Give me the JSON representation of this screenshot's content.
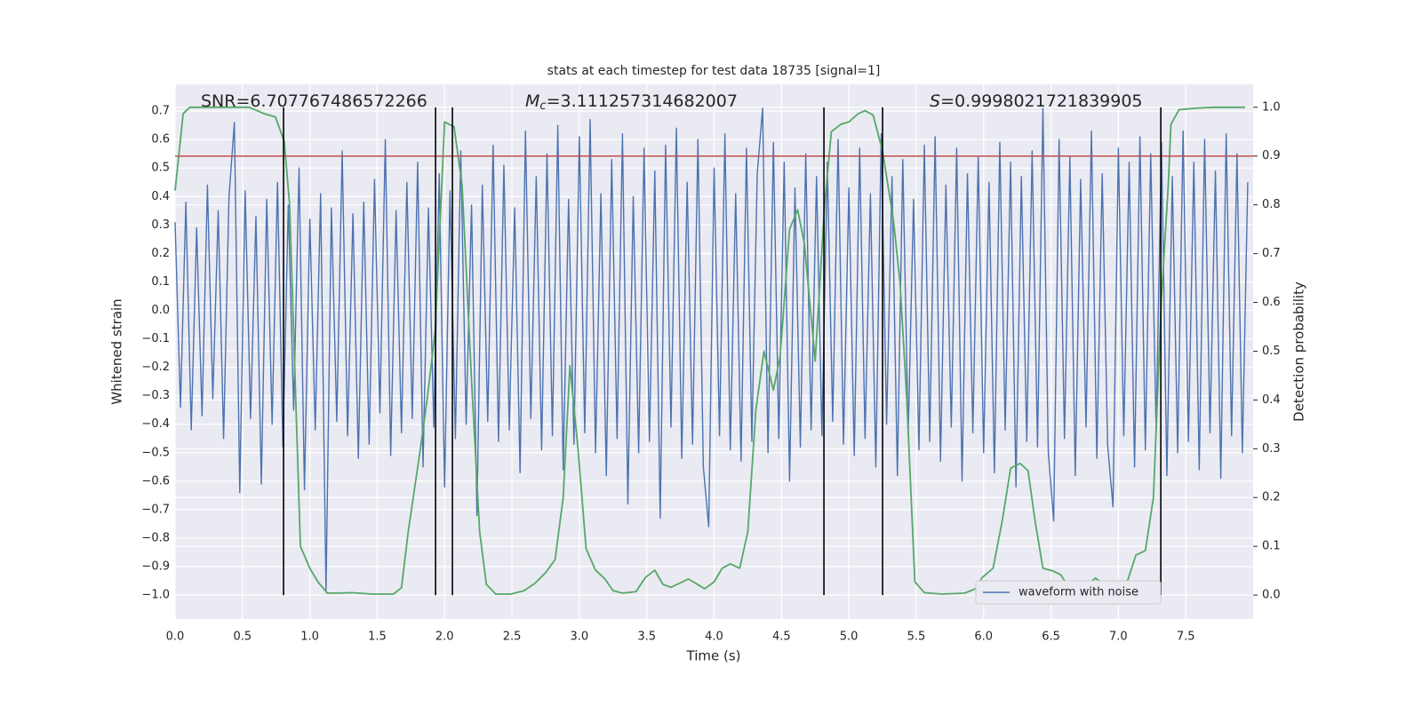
{
  "chart_data": {
    "type": "line",
    "title": "stats at each timestep for test data 18735 [signal=1]",
    "xlabel": "Time (s)",
    "ylabel": "Whitened strain",
    "y2label": "Detection probability",
    "annotations": [
      {
        "text": "SNR=6.707767486572266"
      },
      {
        "symbol": "M",
        "subscript": "c",
        "text": "=3.111257314682007"
      },
      {
        "symbol": "S",
        "text": "=0.9998021721839905"
      }
    ],
    "xlim": [
      0,
      8
    ],
    "ylim": [
      -1.084,
      0.794
    ],
    "y2lim": [
      -0.049,
      1.047
    ],
    "xticks": [
      {
        "value": 0,
        "label": "0.0"
      },
      {
        "value": 0.5,
        "label": "0.5"
      },
      {
        "value": 1,
        "label": "1.0"
      },
      {
        "value": 1.5,
        "label": "1.5"
      },
      {
        "value": 2,
        "label": "2.0"
      },
      {
        "value": 2.5,
        "label": "2.5"
      },
      {
        "value": 3,
        "label": "3.0"
      },
      {
        "value": 3.5,
        "label": "3.5"
      },
      {
        "value": 4,
        "label": "4.0"
      },
      {
        "value": 4.5,
        "label": "4.5"
      },
      {
        "value": 5,
        "label": "5.0"
      },
      {
        "value": 5.5,
        "label": "5.5"
      },
      {
        "value": 6,
        "label": "6.0"
      },
      {
        "value": 6.5,
        "label": "6.5"
      },
      {
        "value": 7,
        "label": "7.0"
      },
      {
        "value": 7.5,
        "label": "7.5"
      }
    ],
    "yticks": [
      {
        "value": 0.7,
        "label": "0.7"
      },
      {
        "value": 0.6,
        "label": "0.6"
      },
      {
        "value": 0.5,
        "label": "0.5"
      },
      {
        "value": 0.4,
        "label": "0.4"
      },
      {
        "value": 0.3,
        "label": "0.3"
      },
      {
        "value": 0.2,
        "label": "0.2"
      },
      {
        "value": 0.1,
        "label": "0.1"
      },
      {
        "value": 0,
        "label": "0.0"
      },
      {
        "value": -0.1,
        "label": "−0.1"
      },
      {
        "value": -0.2,
        "label": "−0.2"
      },
      {
        "value": -0.3,
        "label": "−0.3"
      },
      {
        "value": -0.4,
        "label": "−0.4"
      },
      {
        "value": -0.5,
        "label": "−0.5"
      },
      {
        "value": -0.6,
        "label": "−0.6"
      },
      {
        "value": -0.7,
        "label": "−0.7"
      },
      {
        "value": -0.8,
        "label": "−0.8"
      },
      {
        "value": -0.9,
        "label": "−0.9"
      },
      {
        "value": -1,
        "label": "−1.0"
      }
    ],
    "y2ticks": [
      {
        "value": 0,
        "label": "0.0"
      },
      {
        "value": 0.1,
        "label": "0.1"
      },
      {
        "value": 0.2,
        "label": "0.2"
      },
      {
        "value": 0.3,
        "label": "0.3"
      },
      {
        "value": 0.4,
        "label": "0.4"
      },
      {
        "value": 0.5,
        "label": "0.5"
      },
      {
        "value": 0.6,
        "label": "0.6"
      },
      {
        "value": 0.7,
        "label": "0.7"
      },
      {
        "value": 0.8,
        "label": "0.8"
      },
      {
        "value": 0.9,
        "label": "0.9"
      },
      {
        "value": 1,
        "label": "1.0"
      }
    ],
    "grid": true,
    "legend": "lower right",
    "series": [
      {
        "name": "waveform with noise",
        "color": "#4c72b0",
        "axis": "y",
        "x": [
          0,
          0.04,
          0.08,
          0.12,
          0.16,
          0.2,
          0.24,
          0.28,
          0.32,
          0.36,
          0.4,
          0.44,
          0.48,
          0.52,
          0.56,
          0.6,
          0.64,
          0.68,
          0.72,
          0.76,
          0.8,
          0.84,
          0.88,
          0.92,
          0.96,
          1,
          1.04,
          1.08,
          1.12,
          1.16,
          1.2,
          1.24,
          1.28,
          1.32,
          1.36,
          1.4,
          1.44,
          1.48,
          1.52,
          1.56,
          1.6,
          1.64,
          1.68,
          1.72,
          1.76,
          1.8,
          1.84,
          1.88,
          1.92,
          1.96,
          2,
          2.04,
          2.08,
          2.12,
          2.16,
          2.2,
          2.24,
          2.28,
          2.32,
          2.36,
          2.4,
          2.44,
          2.48,
          2.52,
          2.56,
          2.6,
          2.64,
          2.68,
          2.72,
          2.76,
          2.8,
          2.84,
          2.88,
          2.92,
          2.96,
          3,
          3.04,
          3.08,
          3.12,
          3.16,
          3.2,
          3.24,
          3.28,
          3.32,
          3.36,
          3.4,
          3.44,
          3.48,
          3.52,
          3.56,
          3.6,
          3.64,
          3.68,
          3.72,
          3.76,
          3.8,
          3.84,
          3.88,
          3.92,
          3.96,
          4,
          4.04,
          4.08,
          4.12,
          4.16,
          4.2,
          4.24,
          4.28,
          4.32,
          4.36,
          4.4,
          4.44,
          4.48,
          4.52,
          4.56,
          4.6,
          4.64,
          4.68,
          4.72,
          4.76,
          4.8,
          4.84,
          4.88,
          4.92,
          4.96,
          5,
          5.04,
          5.08,
          5.12,
          5.16,
          5.2,
          5.24,
          5.28,
          5.32,
          5.36,
          5.4,
          5.44,
          5.48,
          5.52,
          5.56,
          5.6,
          5.64,
          5.68,
          5.72,
          5.76,
          5.8,
          5.84,
          5.88,
          5.92,
          5.96,
          6,
          6.04,
          6.08,
          6.12,
          6.16,
          6.2,
          6.24,
          6.28,
          6.32,
          6.36,
          6.4,
          6.44,
          6.48,
          6.52,
          6.56,
          6.6,
          6.64,
          6.68,
          6.72,
          6.76,
          6.8,
          6.84,
          6.88,
          6.92,
          6.96,
          7,
          7.04,
          7.08,
          7.12,
          7.16,
          7.2,
          7.24,
          7.28,
          7.32,
          7.36,
          7.4,
          7.44,
          7.48,
          7.52,
          7.56,
          7.6,
          7.64,
          7.68,
          7.72,
          7.76,
          7.8,
          7.84,
          7.88,
          7.92,
          7.96
        ],
        "values": [
          0.31,
          -0.34,
          0.38,
          -0.42,
          0.29,
          -0.37,
          0.44,
          -0.31,
          0.35,
          -0.45,
          0.4,
          0.66,
          -0.64,
          0.42,
          -0.38,
          0.33,
          -0.61,
          0.39,
          -0.4,
          0.45,
          -0.48,
          0.37,
          -0.35,
          0.5,
          -0.63,
          0.32,
          -0.42,
          0.41,
          -0.99,
          0.36,
          -0.39,
          0.56,
          -0.44,
          0.34,
          -0.52,
          0.38,
          -0.47,
          0.46,
          -0.36,
          0.6,
          -0.51,
          0.35,
          -0.43,
          0.45,
          -0.38,
          0.52,
          -0.55,
          0.36,
          -0.41,
          0.48,
          -0.62,
          0.42,
          -0.45,
          0.56,
          -0.4,
          0.37,
          -0.72,
          0.44,
          -0.39,
          0.58,
          -0.46,
          0.51,
          -0.42,
          0.36,
          -0.57,
          0.63,
          -0.38,
          0.47,
          -0.49,
          0.55,
          -0.44,
          0.65,
          -0.56,
          0.39,
          -0.47,
          0.61,
          -0.43,
          0.67,
          -0.5,
          0.41,
          -0.58,
          0.53,
          -0.45,
          0.62,
          -0.68,
          0.4,
          -0.5,
          0.57,
          -0.46,
          0.49,
          -0.73,
          0.58,
          -0.41,
          0.64,
          -0.52,
          0.45,
          -0.47,
          0.6,
          -0.55,
          -0.76,
          0.5,
          -0.44,
          0.62,
          -0.49,
          0.41,
          -0.53,
          0.57,
          -0.46,
          0.48,
          0.71,
          -0.5,
          0.59,
          -0.45,
          0.52,
          -0.6,
          0.43,
          -0.48,
          0.55,
          -0.42,
          0.47,
          -0.44,
          0.52,
          -0.39,
          0.6,
          -0.47,
          0.43,
          -0.51,
          0.57,
          -0.45,
          0.41,
          -0.55,
          0.62,
          -0.4,
          0.47,
          -0.58,
          0.53,
          -0.44,
          0.39,
          -0.49,
          0.58,
          -0.46,
          0.61,
          -0.53,
          0.44,
          -0.41,
          0.57,
          -0.6,
          0.48,
          -0.43,
          0.54,
          -0.5,
          0.45,
          -0.57,
          0.59,
          -0.42,
          0.52,
          -0.62,
          0.47,
          -0.46,
          0.56,
          -0.48,
          0.71,
          -0.5,
          -0.74,
          0.6,
          -0.45,
          0.54,
          -0.58,
          0.46,
          -0.41,
          0.63,
          -0.52,
          0.48,
          -0.47,
          -0.69,
          0.57,
          -0.44,
          0.52,
          -0.55,
          0.61,
          -0.49,
          0.55,
          -0.42,
          0.59,
          -0.58,
          0.47,
          -0.5,
          0.63,
          -0.46,
          0.52,
          -0.56,
          0.6,
          -0.43,
          0.49,
          -0.59,
          0.62,
          -0.44,
          0.55,
          -0.5,
          0.45
        ]
      },
      {
        "color": "#55a868",
        "axis": "y2",
        "x": [
          0,
          0.06,
          0.11,
          0.55,
          0.66,
          0.745,
          0.81,
          0.85,
          0.93,
          1,
          1.06,
          1.13,
          1.21,
          1.31,
          1.47,
          1.62,
          1.68,
          1.73,
          1.81,
          1.87,
          1.93,
          2,
          2.07,
          2.13,
          2.2,
          2.26,
          2.31,
          2.38,
          2.49,
          2.59,
          2.67,
          2.75,
          2.82,
          2.88,
          2.93,
          2.99,
          3.05,
          3.12,
          3.19,
          3.25,
          3.32,
          3.42,
          3.49,
          3.56,
          3.62,
          3.68,
          3.81,
          3.93,
          4,
          4.06,
          4.12,
          4.19,
          4.25,
          4.31,
          4.37,
          4.44,
          4.49,
          4.56,
          4.62,
          4.67,
          4.75,
          4.82,
          4.87,
          4.94,
          5,
          5.07,
          5.12,
          5.18,
          5.25,
          5.33,
          5.38,
          5.43,
          5.49,
          5.56,
          5.69,
          5.86,
          5.94,
          5.99,
          6.07,
          6.14,
          6.2,
          6.27,
          6.33,
          6.38,
          6.44,
          6.52,
          6.57,
          6.63,
          6.69,
          6.76,
          6.83,
          6.89,
          6.95,
          7,
          7.07,
          7.13,
          7.2,
          7.26,
          7.32,
          7.37,
          7.39,
          7.45,
          7.57,
          7.71,
          7.94
        ],
        "values": [
          0.829,
          0.987,
          1.0,
          1.0,
          0.987,
          0.98,
          0.93,
          0.8,
          0.1,
          0.055,
          0.027,
          0.004,
          0.004,
          0.005,
          0.002,
          0.002,
          0.015,
          0.13,
          0.28,
          0.4,
          0.54,
          0.97,
          0.96,
          0.84,
          0.44,
          0.13,
          0.022,
          0.002,
          0.002,
          0.009,
          0.024,
          0.046,
          0.073,
          0.2,
          0.47,
          0.3,
          0.095,
          0.051,
          0.033,
          0.009,
          0.004,
          0.007,
          0.036,
          0.051,
          0.022,
          0.016,
          0.033,
          0.013,
          0.027,
          0.055,
          0.064,
          0.055,
          0.13,
          0.38,
          0.5,
          0.42,
          0.49,
          0.75,
          0.79,
          0.72,
          0.48,
          0.8,
          0.95,
          0.965,
          0.97,
          0.987,
          0.993,
          0.984,
          0.91,
          0.77,
          0.64,
          0.4,
          0.027,
          0.005,
          0.002,
          0.004,
          0.013,
          0.036,
          0.055,
          0.155,
          0.26,
          0.27,
          0.255,
          0.155,
          0.055,
          0.049,
          0.042,
          0.018,
          0.013,
          0.018,
          0.035,
          0.022,
          0.009,
          0.009,
          0.031,
          0.082,
          0.091,
          0.2,
          0.61,
          0.84,
          0.965,
          0.995,
          0.998,
          1.0,
          1.0
        ]
      }
    ],
    "hlines": [
      {
        "axis": "y2",
        "value": 0.9,
        "color": "#c44e52"
      }
    ],
    "vlines": {
      "x": [
        0.805,
        1.933,
        2.058,
        4.815,
        5.25,
        7.315
      ],
      "axis": "y2",
      "span": [
        0,
        1
      ],
      "color": "#000000"
    }
  }
}
